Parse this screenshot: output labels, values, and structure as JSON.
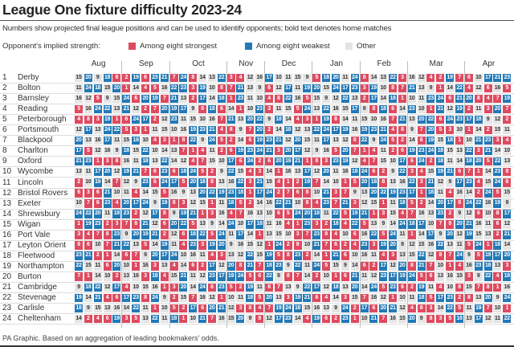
{
  "title": "League One fixture difficulty 2023-24",
  "subtitle": "Numbers show projected final league positions and can be used to identify opponents; bold text denotes home matches",
  "legend": {
    "label": "Opponent's implied strength:",
    "items": [
      {
        "label": "Among eight strongest",
        "color": "#de4a60"
      },
      {
        "label": "Among eight weakest",
        "color": "#2379b6"
      },
      {
        "label": "Other",
        "color": "#e4e4e4"
      }
    ]
  },
  "footer": "PA Graphic. Based on an aggregation of leading bookmakers' odds.",
  "chart_data": {
    "type": "heatmap",
    "title": "League One fixture difficulty 2023-24",
    "months": [
      {
        "label": "Aug",
        "games": 5
      },
      {
        "label": "Sep",
        "games": 5
      },
      {
        "label": "Oct",
        "games": 6
      },
      {
        "label": "Nov",
        "games": 4
      },
      {
        "label": "Dec",
        "games": 5
      },
      {
        "label": "Jan",
        "games": 5
      },
      {
        "label": "Feb",
        "games": 5
      },
      {
        "label": "Mar",
        "games": 6
      },
      {
        "label": "Apr",
        "games": 5
      }
    ],
    "color_rule": {
      "strong_max": 8,
      "weak_min": 17,
      "strong": "#de4a60",
      "weak": "#2379b6",
      "other": "#e4e4e4"
    },
    "teams": [
      {
        "rank": "1",
        "name": "Derby",
        "fixtures": [
          15,
          20,
          9,
          18,
          6,
          2,
          19,
          6,
          23,
          21,
          7,
          24,
          8,
          14,
          13,
          22,
          3,
          4,
          12,
          16,
          17,
          10,
          11,
          15,
          9,
          5,
          18,
          20,
          11,
          24,
          8,
          14,
          13,
          22,
          3,
          16,
          12,
          4,
          2,
          19,
          7,
          6,
          10,
          17,
          21,
          23
        ]
      },
      {
        "rank": "2",
        "name": "Bolton",
        "fixtures": [
          11,
          24,
          18,
          15,
          20,
          1,
          14,
          4,
          5,
          16,
          22,
          23,
          3,
          19,
          10,
          8,
          7,
          21,
          13,
          9,
          6,
          12,
          17,
          11,
          19,
          20,
          15,
          24,
          17,
          23,
          3,
          19,
          10,
          8,
          7,
          21,
          13,
          9,
          1,
          14,
          22,
          4,
          12,
          6,
          16,
          5
        ]
      },
      {
        "rank": "3",
        "name": "Barnsley",
        "fixtures": [
          16,
          12,
          5,
          9,
          15,
          24,
          6,
          20,
          19,
          7,
          21,
          13,
          2,
          17,
          14,
          18,
          1,
          23,
          11,
          10,
          4,
          8,
          22,
          16,
          5,
          15,
          9,
          12,
          22,
          13,
          2,
          17,
          14,
          18,
          1,
          10,
          11,
          23,
          24,
          6,
          21,
          20,
          8,
          4,
          7,
          19
        ]
      },
      {
        "rank": "4",
        "name": "Reading",
        "fixtures": [
          5,
          16,
          24,
          22,
          13,
          21,
          12,
          2,
          7,
          20,
          19,
          17,
          9,
          8,
          18,
          6,
          14,
          1,
          10,
          23,
          3,
          11,
          15,
          5,
          24,
          13,
          22,
          16,
          15,
          17,
          9,
          8,
          18,
          6,
          14,
          23,
          10,
          1,
          21,
          12,
          19,
          2,
          11,
          3,
          20,
          7
        ]
      },
      {
        "rank": "5",
        "name": "Peterborough",
        "fixtures": [
          4,
          8,
          3,
          19,
          1,
          6,
          24,
          17,
          2,
          12,
          23,
          11,
          15,
          10,
          16,
          7,
          21,
          13,
          20,
          22,
          9,
          18,
          14,
          4,
          3,
          1,
          19,
          8,
          14,
          11,
          15,
          10,
          16,
          7,
          21,
          13,
          20,
          22,
          6,
          24,
          23,
          17,
          18,
          9,
          12,
          2
        ]
      },
      {
        "rank": "6",
        "name": "Portsmouth",
        "fixtures": [
          12,
          17,
          13,
          24,
          22,
          5,
          3,
          1,
          11,
          15,
          10,
          16,
          19,
          23,
          21,
          4,
          8,
          9,
          7,
          20,
          2,
          14,
          18,
          12,
          13,
          22,
          24,
          17,
          19,
          16,
          19,
          23,
          21,
          4,
          8,
          9,
          7,
          20,
          5,
          3,
          10,
          1,
          14,
          2,
          15,
          11
        ]
      },
      {
        "rank": "7",
        "name": "Blackpool",
        "fixtures": [
          20,
          13,
          16,
          17,
          11,
          15,
          18,
          10,
          4,
          3,
          1,
          8,
          22,
          9,
          24,
          5,
          2,
          14,
          6,
          19,
          23,
          21,
          12,
          20,
          15,
          11,
          17,
          13,
          12,
          8,
          22,
          9,
          24,
          5,
          2,
          14,
          6,
          19,
          15,
          18,
          1,
          10,
          21,
          23,
          3,
          4
        ]
      },
      {
        "rank": "8",
        "name": "Charlton",
        "fixtures": [
          17,
          5,
          12,
          16,
          9,
          18,
          15,
          22,
          10,
          14,
          13,
          7,
          1,
          4,
          11,
          2,
          6,
          19,
          23,
          24,
          21,
          3,
          20,
          17,
          12,
          9,
          16,
          5,
          20,
          7,
          1,
          4,
          11,
          2,
          6,
          19,
          23,
          24,
          18,
          15,
          13,
          22,
          3,
          21,
          14,
          10
        ]
      },
      {
        "rank": "9",
        "name": "Oxford",
        "fixtures": [
          21,
          23,
          1,
          3,
          8,
          16,
          11,
          18,
          13,
          22,
          14,
          12,
          4,
          7,
          15,
          10,
          17,
          6,
          24,
          2,
          6,
          20,
          19,
          21,
          1,
          8,
          3,
          23,
          19,
          12,
          4,
          7,
          15,
          10,
          17,
          6,
          24,
          2,
          18,
          11,
          14,
          18,
          20,
          5,
          22,
          13
        ]
      },
      {
        "rank": "10",
        "name": "Wycombe",
        "fixtures": [
          13,
          11,
          17,
          20,
          12,
          19,
          21,
          7,
          6,
          23,
          6,
          18,
          24,
          5,
          2,
          9,
          22,
          15,
          4,
          3,
          14,
          1,
          16,
          13,
          17,
          12,
          20,
          11,
          16,
          18,
          24,
          6,
          2,
          9,
          22,
          3,
          4,
          15,
          19,
          21,
          6,
          7,
          1,
          14,
          23,
          8
        ]
      },
      {
        "rank": "11",
        "name": "Lincoln",
        "fixtures": [
          2,
          10,
          19,
          14,
          7,
          12,
          9,
          23,
          6,
          24,
          17,
          5,
          20,
          18,
          8,
          13,
          16,
          22,
          3,
          21,
          15,
          4,
          1,
          2,
          19,
          7,
          14,
          10,
          1,
          5,
          20,
          18,
          8,
          13,
          16,
          22,
          3,
          21,
          12,
          9,
          17,
          23,
          4,
          15,
          24,
          6
        ]
      },
      {
        "rank": "12",
        "name": "Bristol Rovers",
        "fixtures": [
          6,
          3,
          6,
          21,
          10,
          11,
          4,
          14,
          15,
          5,
          16,
          9,
          13,
          20,
          22,
          19,
          23,
          18,
          1,
          17,
          24,
          2,
          7,
          6,
          8,
          10,
          21,
          3,
          7,
          9,
          13,
          20,
          22,
          19,
          23,
          17,
          1,
          18,
          11,
          4,
          16,
          14,
          2,
          24,
          5,
          15
        ]
      },
      {
        "rank": "13",
        "name": "Exeter",
        "fixtures": [
          10,
          7,
          6,
          23,
          4,
          20,
          17,
          24,
          9,
          19,
          8,
          3,
          12,
          15,
          1,
          11,
          18,
          5,
          2,
          14,
          16,
          22,
          21,
          10,
          8,
          4,
          23,
          7,
          21,
          3,
          12,
          15,
          1,
          11,
          18,
          5,
          2,
          14,
          20,
          17,
          8,
          24,
          22,
          16,
          19,
          9
        ]
      },
      {
        "rank": "14",
        "name": "Shrewsbury",
        "fixtures": [
          24,
          22,
          20,
          11,
          18,
          23,
          2,
          12,
          17,
          8,
          9,
          19,
          21,
          1,
          3,
          16,
          4,
          7,
          16,
          13,
          10,
          6,
          5,
          24,
          20,
          18,
          11,
          22,
          5,
          19,
          21,
          1,
          3,
          15,
          4,
          7,
          16,
          13,
          23,
          2,
          9,
          12,
          6,
          10,
          8,
          17
        ]
      },
      {
        "rank": "15",
        "name": "Wigan",
        "fixtures": [
          1,
          19,
          23,
          2,
          3,
          7,
          8,
          21,
          12,
          6,
          20,
          22,
          5,
          13,
          9,
          14,
          24,
          10,
          17,
          18,
          11,
          16,
          4,
          1,
          23,
          3,
          2,
          18,
          4,
          22,
          5,
          13,
          9,
          14,
          24,
          18,
          17,
          10,
          7,
          8,
          20,
          21,
          16,
          11,
          6,
          12
        ]
      },
      {
        "rank": "16",
        "name": "Port Vale",
        "fixtures": [
          3,
          4,
          7,
          8,
          23,
          9,
          20,
          19,
          21,
          2,
          12,
          6,
          18,
          22,
          5,
          24,
          11,
          17,
          14,
          1,
          13,
          15,
          10,
          3,
          7,
          23,
          8,
          4,
          10,
          6,
          16,
          22,
          5,
          24,
          11,
          1,
          14,
          17,
          9,
          20,
          12,
          19,
          15,
          13,
          2,
          21
        ]
      },
      {
        "rank": "17",
        "name": "Leyton Orient",
        "fixtures": [
          8,
          6,
          10,
          7,
          21,
          22,
          13,
          5,
          14,
          19,
          11,
          4,
          23,
          3,
          19,
          20,
          9,
          16,
          15,
          12,
          1,
          24,
          2,
          8,
          10,
          21,
          7,
          6,
          2,
          4,
          23,
          3,
          19,
          20,
          9,
          12,
          15,
          16,
          22,
          13,
          11,
          5,
          24,
          1,
          18,
          14
        ]
      },
      {
        "rank": "18",
        "name": "Fleetwood",
        "fixtures": [
          23,
          21,
          2,
          1,
          14,
          6,
          7,
          9,
          20,
          17,
          24,
          10,
          16,
          11,
          4,
          3,
          13,
          12,
          22,
          15,
          19,
          5,
          8,
          23,
          2,
          14,
          1,
          21,
          6,
          10,
          16,
          11,
          4,
          3,
          13,
          15,
          22,
          12,
          8,
          7,
          24,
          9,
          5,
          19,
          17,
          20
        ]
      },
      {
        "rank": "19",
        "name": "Northampton",
        "fixtures": [
          22,
          15,
          11,
          6,
          20,
          10,
          1,
          16,
          3,
          13,
          4,
          14,
          6,
          2,
          17,
          12,
          20,
          8,
          21,
          7,
          18,
          23,
          9,
          22,
          11,
          24,
          5,
          15,
          9,
          14,
          6,
          2,
          17,
          12,
          20,
          8,
          21,
          7,
          10,
          1,
          4,
          16,
          23,
          18,
          13,
          3
        ]
      },
      {
        "rank": "20",
        "name": "Burton",
        "fixtures": [
          7,
          1,
          14,
          10,
          2,
          13,
          16,
          3,
          18,
          4,
          15,
          21,
          11,
          12,
          23,
          17,
          19,
          24,
          5,
          6,
          22,
          9,
          8,
          7,
          14,
          2,
          10,
          1,
          6,
          21,
          11,
          12,
          23,
          17,
          19,
          24,
          5,
          6,
          13,
          16,
          15,
          3,
          9,
          22,
          4,
          18
        ]
      },
      {
        "rank": "21",
        "name": "Cambridge",
        "fixtures": [
          9,
          18,
          22,
          12,
          17,
          4,
          10,
          15,
          16,
          1,
          3,
          20,
          14,
          24,
          6,
          23,
          5,
          2,
          19,
          11,
          8,
          7,
          13,
          9,
          22,
          17,
          12,
          18,
          13,
          20,
          14,
          24,
          5,
          23,
          6,
          2,
          19,
          11,
          4,
          10,
          8,
          15,
          7,
          8,
          1,
          16
        ]
      },
      {
        "rank": "22",
        "name": "Stevenage",
        "fixtures": [
          19,
          14,
          21,
          4,
          6,
          17,
          23,
          8,
          24,
          9,
          2,
          15,
          7,
          16,
          12,
          1,
          10,
          11,
          18,
          5,
          20,
          13,
          3,
          19,
          21,
          6,
          4,
          14,
          3,
          15,
          7,
          16,
          12,
          1,
          10,
          11,
          18,
          5,
          17,
          23,
          2,
          8,
          13,
          20,
          9,
          24
        ]
      },
      {
        "rank": "23",
        "name": "Carlisle",
        "fixtures": [
          18,
          9,
          15,
          13,
          16,
          14,
          22,
          11,
          1,
          10,
          5,
          2,
          17,
          6,
          20,
          21,
          12,
          3,
          8,
          4,
          7,
          19,
          24,
          18,
          15,
          16,
          13,
          9,
          24,
          2,
          17,
          6,
          20,
          21,
          12,
          4,
          8,
          3,
          14,
          22,
          5,
          11,
          19,
          7,
          10,
          1
        ]
      },
      {
        "rank": "24",
        "name": "Cheltenham",
        "fixtures": [
          14,
          2,
          4,
          6,
          19,
          3,
          5,
          13,
          22,
          11,
          18,
          1,
          10,
          21,
          7,
          16,
          15,
          20,
          9,
          8,
          12,
          17,
          23,
          14,
          4,
          19,
          6,
          2,
          23,
          1,
          10,
          21,
          7,
          16,
          15,
          20,
          9,
          8,
          3,
          5,
          18,
          13,
          17,
          12,
          11,
          22
        ]
      }
    ]
  }
}
